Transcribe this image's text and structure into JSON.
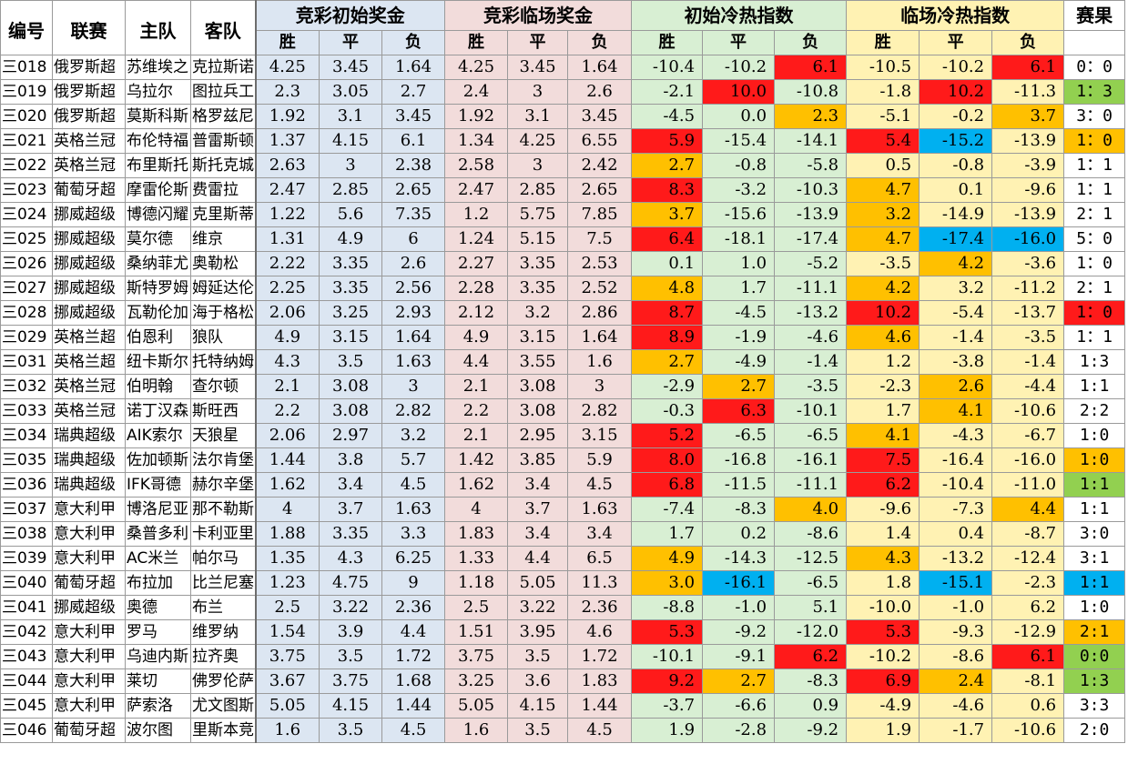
{
  "header": {
    "id": "编号",
    "league": "联赛",
    "home": "主队",
    "away": "客队",
    "groups": [
      "竞彩初始奖金",
      "竞彩临场奖金",
      "初始冷热指数",
      "临场冷热指数",
      "赛果"
    ],
    "sub": [
      "胜",
      "平",
      "负"
    ]
  },
  "colors": {
    "red": "#ff1a1a",
    "orange": "#ffc000",
    "blue": "#00b0f0",
    "green": "#92d050",
    "init_bg": "#dce6f2",
    "live_bg": "#f2dcdb",
    "hot_init_bg": "#d8efd3",
    "hot_live_bg": "#fff2b3"
  },
  "rows": [
    {
      "id": "三018",
      "league": "俄罗斯超",
      "home": "苏维埃之",
      "away": "克拉斯诺",
      "i": [
        "4.25",
        "3.45",
        "1.64"
      ],
      "l": [
        "4.25",
        "3.45",
        "1.64"
      ],
      "hi": [
        "-10.4",
        "-10.2",
        "6.1"
      ],
      "hic": [
        "",
        "",
        "red"
      ],
      "hl": [
        "-10.5",
        "-10.2",
        "6.1"
      ],
      "hlc": [
        "",
        "",
        "red"
      ],
      "res": "0：0",
      "resc": ""
    },
    {
      "id": "三019",
      "league": "俄罗斯超",
      "home": "乌拉尔",
      "away": "图拉兵工",
      "i": [
        "2.3",
        "3.05",
        "2.7"
      ],
      "l": [
        "2.4",
        "3",
        "2.6"
      ],
      "hi": [
        "-2.1",
        "10.0",
        "-10.8"
      ],
      "hic": [
        "",
        "red",
        ""
      ],
      "hl": [
        "-1.8",
        "10.2",
        "-11.3"
      ],
      "hlc": [
        "",
        "red",
        ""
      ],
      "res": "1：3",
      "resc": "green"
    },
    {
      "id": "三020",
      "league": "俄罗斯超",
      "home": "莫斯科斯",
      "away": "格罗兹尼",
      "i": [
        "1.92",
        "3.1",
        "3.45"
      ],
      "l": [
        "1.92",
        "3.1",
        "3.45"
      ],
      "hi": [
        "-4.5",
        "0.0",
        "2.3"
      ],
      "hic": [
        "",
        "",
        "orange"
      ],
      "hl": [
        "-5.1",
        "-0.2",
        "3.7"
      ],
      "hlc": [
        "",
        "",
        "orange"
      ],
      "res": "3：0",
      "resc": ""
    },
    {
      "id": "三021",
      "league": "英格兰冠",
      "home": "布伦特福",
      "away": "普雷斯顿",
      "i": [
        "1.37",
        "4.15",
        "6.1"
      ],
      "l": [
        "1.34",
        "4.25",
        "6.55"
      ],
      "hi": [
        "5.9",
        "-15.4",
        "-14.1"
      ],
      "hic": [
        "red",
        "",
        ""
      ],
      "hl": [
        "5.4",
        "-15.2",
        "-13.9"
      ],
      "hlc": [
        "red",
        "blue",
        ""
      ],
      "res": "1：0",
      "resc": "orange"
    },
    {
      "id": "三022",
      "league": "英格兰冠",
      "home": "布里斯托",
      "away": "斯托克城",
      "i": [
        "2.63",
        "3",
        "2.38"
      ],
      "l": [
        "2.58",
        "3",
        "2.42"
      ],
      "hi": [
        "2.7",
        "-0.8",
        "-5.8"
      ],
      "hic": [
        "orange",
        "",
        ""
      ],
      "hl": [
        "0.5",
        "-0.8",
        "-3.9"
      ],
      "hlc": [
        "",
        "",
        ""
      ],
      "res": "1：1",
      "resc": ""
    },
    {
      "id": "三023",
      "league": "葡萄牙超",
      "home": "摩雷伦斯",
      "away": "费雷拉",
      "i": [
        "2.47",
        "2.85",
        "2.65"
      ],
      "l": [
        "2.47",
        "2.85",
        "2.65"
      ],
      "hi": [
        "8.3",
        "-3.2",
        "-10.3"
      ],
      "hic": [
        "red",
        "",
        ""
      ],
      "hl": [
        "4.7",
        "0.1",
        "-9.6"
      ],
      "hlc": [
        "orange",
        "",
        ""
      ],
      "res": "1：1",
      "resc": ""
    },
    {
      "id": "三024",
      "league": "挪威超级",
      "home": "博德闪耀",
      "away": "克里斯蒂",
      "i": [
        "1.22",
        "5.6",
        "7.35"
      ],
      "l": [
        "1.2",
        "5.75",
        "7.85"
      ],
      "hi": [
        "3.7",
        "-15.6",
        "-13.9"
      ],
      "hic": [
        "orange",
        "",
        ""
      ],
      "hl": [
        "3.2",
        "-14.9",
        "-13.9"
      ],
      "hlc": [
        "orange",
        "",
        ""
      ],
      "res": "2：1",
      "resc": ""
    },
    {
      "id": "三025",
      "league": "挪威超级",
      "home": "莫尔德",
      "away": "维京",
      "i": [
        "1.31",
        "4.9",
        "6"
      ],
      "l": [
        "1.24",
        "5.15",
        "7.5"
      ],
      "hi": [
        "6.4",
        "-18.1",
        "-17.4"
      ],
      "hic": [
        "red",
        "",
        ""
      ],
      "hl": [
        "4.7",
        "-17.4",
        "-16.0"
      ],
      "hlc": [
        "orange",
        "blue",
        "blue"
      ],
      "res": "5：0",
      "resc": ""
    },
    {
      "id": "三026",
      "league": "挪威超级",
      "home": "桑纳菲尤",
      "away": "奥勒松",
      "i": [
        "2.22",
        "3.35",
        "2.6"
      ],
      "l": [
        "2.27",
        "3.35",
        "2.53"
      ],
      "hi": [
        "0.1",
        "1.0",
        "-5.2"
      ],
      "hic": [
        "",
        "",
        ""
      ],
      "hl": [
        "-3.5",
        "4.2",
        "-3.6"
      ],
      "hlc": [
        "",
        "orange",
        ""
      ],
      "res": "1：0",
      "resc": ""
    },
    {
      "id": "三027",
      "league": "挪威超级",
      "home": "斯特罗姆",
      "away": "姆延达伦",
      "i": [
        "2.25",
        "3.35",
        "2.56"
      ],
      "l": [
        "2.28",
        "3.35",
        "2.52"
      ],
      "hi": [
        "4.8",
        "1.7",
        "-11.1"
      ],
      "hic": [
        "orange",
        "",
        ""
      ],
      "hl": [
        "4.2",
        "3.2",
        "-11.2"
      ],
      "hlc": [
        "orange",
        "",
        ""
      ],
      "res": "2：1",
      "resc": ""
    },
    {
      "id": "三028",
      "league": "挪威超级",
      "home": "瓦勒伦加",
      "away": "海于格松",
      "i": [
        "2.06",
        "3.25",
        "2.93"
      ],
      "l": [
        "2.12",
        "3.2",
        "2.86"
      ],
      "hi": [
        "8.7",
        "-4.5",
        "-13.2"
      ],
      "hic": [
        "red",
        "",
        ""
      ],
      "hl": [
        "10.2",
        "-5.4",
        "-13.7"
      ],
      "hlc": [
        "red",
        "",
        ""
      ],
      "res": "1：0",
      "resc": "red"
    },
    {
      "id": "三029",
      "league": "英格兰超",
      "home": "伯恩利",
      "away": "狼队",
      "i": [
        "4.9",
        "3.15",
        "1.64"
      ],
      "l": [
        "4.9",
        "3.15",
        "1.64"
      ],
      "hi": [
        "8.9",
        "-1.9",
        "-4.6"
      ],
      "hic": [
        "red",
        "",
        ""
      ],
      "hl": [
        "4.6",
        "-1.4",
        "-3.5"
      ],
      "hlc": [
        "orange",
        "",
        ""
      ],
      "res": "1：1",
      "resc": ""
    },
    {
      "id": "三031",
      "league": "英格兰超",
      "home": "纽卡斯尔",
      "away": "托特纳姆",
      "i": [
        "4.3",
        "3.5",
        "1.63"
      ],
      "l": [
        "4.4",
        "3.55",
        "1.6"
      ],
      "hi": [
        "2.7",
        "-4.9",
        "-1.4"
      ],
      "hic": [
        "orange",
        "",
        ""
      ],
      "hl": [
        "1.2",
        "-3.8",
        "-1.4"
      ],
      "hlc": [
        "",
        "",
        ""
      ],
      "res": "1:3",
      "resc": ""
    },
    {
      "id": "三032",
      "league": "英格兰冠",
      "home": "伯明翰",
      "away": "查尔顿",
      "i": [
        "2.1",
        "3.08",
        "3"
      ],
      "l": [
        "2.1",
        "3.08",
        "3"
      ],
      "hi": [
        "-2.9",
        "2.7",
        "-3.5"
      ],
      "hic": [
        "",
        "orange",
        ""
      ],
      "hl": [
        "-2.3",
        "2.6",
        "-4.4"
      ],
      "hlc": [
        "",
        "orange",
        ""
      ],
      "res": "1:1",
      "resc": ""
    },
    {
      "id": "三033",
      "league": "英格兰冠",
      "home": "诺丁汉森",
      "away": "斯旺西",
      "i": [
        "2.2",
        "3.08",
        "2.82"
      ],
      "l": [
        "2.2",
        "3.08",
        "2.82"
      ],
      "hi": [
        "-0.3",
        "6.3",
        "-10.1"
      ],
      "hic": [
        "",
        "red",
        ""
      ],
      "hl": [
        "1.7",
        "4.1",
        "-10.6"
      ],
      "hlc": [
        "",
        "orange",
        ""
      ],
      "res": "2:2",
      "resc": ""
    },
    {
      "id": "三034",
      "league": "瑞典超级",
      "home": "AIK索尔",
      "away": "天狼星",
      "i": [
        "2.06",
        "2.97",
        "3.2"
      ],
      "l": [
        "2.1",
        "2.95",
        "3.15"
      ],
      "hi": [
        "5.2",
        "-6.5",
        "-6.5"
      ],
      "hic": [
        "red",
        "",
        ""
      ],
      "hl": [
        "4.1",
        "-4.3",
        "-6.7"
      ],
      "hlc": [
        "orange",
        "",
        ""
      ],
      "res": "1:0",
      "resc": ""
    },
    {
      "id": "三035",
      "league": "瑞典超级",
      "home": "佐加顿斯",
      "away": "法尔肯堡",
      "i": [
        "1.44",
        "3.8",
        "5.7"
      ],
      "l": [
        "1.42",
        "3.85",
        "5.9"
      ],
      "hi": [
        "8.0",
        "-16.8",
        "-16.1"
      ],
      "hic": [
        "red",
        "",
        ""
      ],
      "hl": [
        "7.5",
        "-16.4",
        "-16.0"
      ],
      "hlc": [
        "red",
        "",
        ""
      ],
      "res": "1:0",
      "resc": "orange"
    },
    {
      "id": "三036",
      "league": "瑞典超级",
      "home": "IFK哥德",
      "away": "赫尔辛堡",
      "i": [
        "1.62",
        "3.4",
        "4.5"
      ],
      "l": [
        "1.62",
        "3.4",
        "4.5"
      ],
      "hi": [
        "6.8",
        "-11.5",
        "-11.1"
      ],
      "hic": [
        "red",
        "",
        ""
      ],
      "hl": [
        "6.2",
        "-10.4",
        "-11.0"
      ],
      "hlc": [
        "red",
        "",
        ""
      ],
      "res": "1:1",
      "resc": "green"
    },
    {
      "id": "三037",
      "league": "意大利甲",
      "home": "博洛尼亚",
      "away": "那不勒斯",
      "i": [
        "4",
        "3.7",
        "1.63"
      ],
      "l": [
        "4",
        "3.7",
        "1.63"
      ],
      "hi": [
        "-7.4",
        "-8.3",
        "4.0"
      ],
      "hic": [
        "",
        "",
        "orange"
      ],
      "hl": [
        "-9.6",
        "-7.3",
        "4.4"
      ],
      "hlc": [
        "",
        "",
        "orange"
      ],
      "res": "1:1",
      "resc": ""
    },
    {
      "id": "三038",
      "league": "意大利甲",
      "home": "桑普多利",
      "away": "卡利亚里",
      "i": [
        "1.88",
        "3.35",
        "3.3"
      ],
      "l": [
        "1.83",
        "3.4",
        "3.4"
      ],
      "hi": [
        "1.7",
        "0.2",
        "-8.6"
      ],
      "hic": [
        "",
        "",
        ""
      ],
      "hl": [
        "1.4",
        "0.4",
        "-8.7"
      ],
      "hlc": [
        "",
        "",
        ""
      ],
      "res": "3:0",
      "resc": ""
    },
    {
      "id": "三039",
      "league": "意大利甲",
      "home": "AC米兰",
      "away": "帕尔马",
      "i": [
        "1.35",
        "4.3",
        "6.25"
      ],
      "l": [
        "1.33",
        "4.4",
        "6.5"
      ],
      "hi": [
        "4.9",
        "-14.3",
        "-12.5"
      ],
      "hic": [
        "orange",
        "",
        ""
      ],
      "hl": [
        "4.3",
        "-13.2",
        "-12.4"
      ],
      "hlc": [
        "orange",
        "",
        ""
      ],
      "res": "3:1",
      "resc": ""
    },
    {
      "id": "三040",
      "league": "葡萄牙超",
      "home": "布拉加",
      "away": "比兰尼塞",
      "i": [
        "1.23",
        "4.75",
        "9"
      ],
      "l": [
        "1.18",
        "5.05",
        "11.3"
      ],
      "hi": [
        "3.0",
        "-16.1",
        "-6.5"
      ],
      "hic": [
        "orange",
        "blue",
        ""
      ],
      "hl": [
        "1.8",
        "-15.1",
        "-2.3"
      ],
      "hlc": [
        "",
        "blue",
        ""
      ],
      "res": "1:1",
      "resc": "blue"
    },
    {
      "id": "三041",
      "league": "挪威超级",
      "home": "奥德",
      "away": "布兰",
      "i": [
        "2.5",
        "3.22",
        "2.36"
      ],
      "l": [
        "2.5",
        "3.22",
        "2.36"
      ],
      "hi": [
        "-8.8",
        "-1.0",
        "5.1"
      ],
      "hic": [
        "",
        "",
        ""
      ],
      "hl": [
        "-10.0",
        "-1.0",
        "6.2"
      ],
      "hlc": [
        "",
        "",
        ""
      ],
      "res": "1:0",
      "resc": ""
    },
    {
      "id": "三042",
      "league": "意大利甲",
      "home": "罗马",
      "away": "维罗纳",
      "i": [
        "1.54",
        "3.9",
        "4.4"
      ],
      "l": [
        "1.51",
        "3.95",
        "4.6"
      ],
      "hi": [
        "5.3",
        "-9.2",
        "-12.0"
      ],
      "hic": [
        "red",
        "",
        ""
      ],
      "hl": [
        "5.3",
        "-9.3",
        "-12.9"
      ],
      "hlc": [
        "red",
        "",
        ""
      ],
      "res": "2:1",
      "resc": "orange"
    },
    {
      "id": "三043",
      "league": "意大利甲",
      "home": "乌迪内斯",
      "away": "拉齐奥",
      "i": [
        "3.75",
        "3.5",
        "1.72"
      ],
      "l": [
        "3.75",
        "3.5",
        "1.72"
      ],
      "hi": [
        "-10.1",
        "-9.1",
        "6.2"
      ],
      "hic": [
        "",
        "",
        "red"
      ],
      "hl": [
        "-10.2",
        "-8.6",
        "6.1"
      ],
      "hlc": [
        "",
        "",
        "red"
      ],
      "res": "0:0",
      "resc": "green"
    },
    {
      "id": "三044",
      "league": "意大利甲",
      "home": "莱切",
      "away": "佛罗伦萨",
      "i": [
        "3.67",
        "3.75",
        "1.68"
      ],
      "l": [
        "3.25",
        "3.6",
        "1.83"
      ],
      "hi": [
        "9.2",
        "2.7",
        "-8.3"
      ],
      "hic": [
        "red",
        "orange",
        ""
      ],
      "hl": [
        "6.9",
        "2.4",
        "-8.1"
      ],
      "hlc": [
        "red",
        "orange",
        ""
      ],
      "res": "1:3",
      "resc": "green"
    },
    {
      "id": "三045",
      "league": "意大利甲",
      "home": "萨索洛",
      "away": "尤文图斯",
      "i": [
        "5.05",
        "4.15",
        "1.44"
      ],
      "l": [
        "5.05",
        "4.15",
        "1.44"
      ],
      "hi": [
        "-3.7",
        "-6.6",
        "0.9"
      ],
      "hic": [
        "",
        "",
        ""
      ],
      "hl": [
        "-4.9",
        "-4.6",
        "0.6"
      ],
      "hlc": [
        "",
        "",
        ""
      ],
      "res": "3:3",
      "resc": ""
    },
    {
      "id": "三046",
      "league": "葡萄牙超",
      "home": "波尔图",
      "away": "里斯本竞",
      "i": [
        "1.6",
        "3.5",
        "4.5"
      ],
      "l": [
        "1.6",
        "3.5",
        "4.5"
      ],
      "hi": [
        "1.9",
        "-2.8",
        "-9.2"
      ],
      "hic": [
        "",
        "",
        ""
      ],
      "hl": [
        "1.9",
        "-1.7",
        "-10.6"
      ],
      "hlc": [
        "",
        "",
        ""
      ],
      "res": "2:0",
      "resc": ""
    }
  ]
}
